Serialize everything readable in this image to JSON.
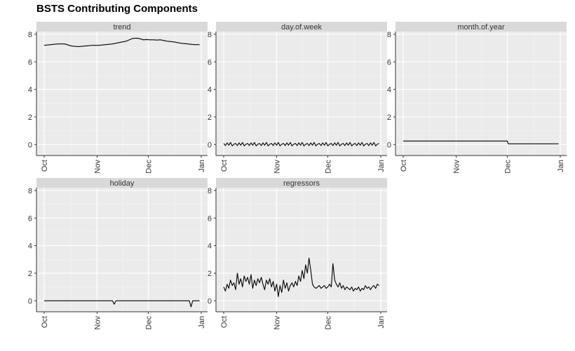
{
  "chart_data": {
    "type": "line",
    "title": "BSTS Contributing Components",
    "xlabel": "",
    "ylabel": "",
    "ylim": [
      -0.8,
      8.2
    ],
    "y_ticks": [
      0,
      2,
      4,
      6,
      8
    ],
    "x_ticks": [
      "Oct",
      "Nov",
      "Dec",
      "Jan"
    ],
    "x_tick_days": [
      0,
      31,
      61,
      92
    ],
    "x_range_days": [
      0,
      92
    ],
    "grid": true,
    "facets": [
      {
        "name": "trend",
        "x": [
          0,
          4,
          8,
          12,
          16,
          20,
          24,
          28,
          32,
          36,
          40,
          44,
          48,
          52,
          54,
          56,
          58,
          60,
          62,
          64,
          66,
          68,
          72,
          76,
          80,
          84,
          88,
          91
        ],
        "y": [
          7.2,
          7.25,
          7.3,
          7.3,
          7.15,
          7.1,
          7.15,
          7.2,
          7.2,
          7.25,
          7.3,
          7.4,
          7.5,
          7.7,
          7.72,
          7.68,
          7.6,
          7.62,
          7.6,
          7.6,
          7.58,
          7.6,
          7.5,
          7.45,
          7.35,
          7.3,
          7.25,
          7.25
        ]
      },
      {
        "name": "day.of.week",
        "pattern": [
          0.08,
          -0.08,
          0.12,
          -0.05,
          0.15,
          -0.1,
          0.02
        ],
        "x_start": 0,
        "x_end": 91
      },
      {
        "name": "month.of.year",
        "x": [
          0,
          30,
          30.5,
          61,
          61.5,
          91
        ],
        "y": [
          0.25,
          0.25,
          0.25,
          0.25,
          0.05,
          0.05
        ]
      },
      {
        "name": "holiday",
        "x": [
          0,
          40,
          41,
          42,
          85,
          86,
          87,
          91
        ],
        "y": [
          0,
          0,
          -0.25,
          0,
          0,
          -0.45,
          0,
          0
        ]
      },
      {
        "name": "regressors",
        "x": [
          0,
          1,
          2,
          3,
          4,
          5,
          6,
          7,
          8,
          9,
          10,
          11,
          12,
          13,
          14,
          15,
          16,
          17,
          18,
          19,
          20,
          21,
          22,
          23,
          24,
          25,
          26,
          27,
          28,
          29,
          30,
          31,
          32,
          33,
          34,
          35,
          36,
          37,
          38,
          39,
          40,
          41,
          42,
          43,
          44,
          45,
          46,
          47,
          48,
          49,
          50,
          51,
          52,
          53,
          54,
          55,
          56,
          57,
          58,
          59,
          60,
          61,
          62,
          63,
          64,
          65,
          66,
          67,
          68,
          69,
          70,
          71,
          72,
          73,
          74,
          75,
          76,
          77,
          78,
          79,
          80,
          81,
          82,
          83,
          84,
          85,
          86,
          87,
          88,
          89,
          90,
          91
        ],
        "y": [
          1.0,
          0.7,
          1.2,
          0.9,
          1.5,
          1.1,
          1.3,
          0.8,
          2.0,
          1.2,
          1.6,
          1.0,
          1.8,
          1.4,
          1.7,
          1.2,
          1.9,
          0.9,
          1.5,
          1.1,
          1.6,
          1.3,
          1.7,
          1.2,
          0.8,
          1.5,
          1.2,
          1.6,
          1.0,
          1.4,
          0.7,
          1.2,
          0.3,
          1.1,
          0.6,
          1.5,
          0.9,
          1.3,
          0.7,
          1.1,
          1.3,
          1.0,
          1.4,
          1.1,
          1.8,
          1.4,
          2.2,
          1.6,
          2.6,
          2.0,
          3.1,
          2.2,
          1.2,
          1.0,
          0.9,
          1.0,
          1.1,
          0.9,
          1.0,
          1.1,
          0.9,
          1.0,
          1.2,
          1.0,
          2.7,
          1.5,
          1.2,
          1.0,
          1.3,
          0.9,
          1.1,
          0.8,
          1.0,
          0.9,
          0.8,
          1.0,
          0.7,
          0.9,
          0.8,
          1.0,
          0.7,
          0.9,
          0.8,
          1.1,
          0.9,
          1.0,
          0.8,
          1.0,
          1.1,
          0.9,
          1.2,
          1.1
        ]
      }
    ]
  }
}
